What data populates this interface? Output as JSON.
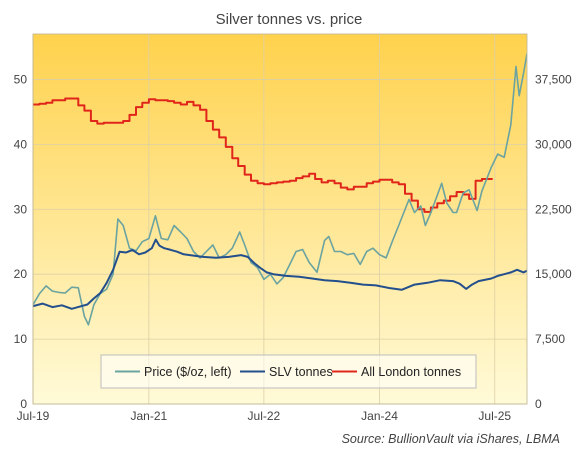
{
  "chart_data": {
    "type": "line",
    "title": "Silver tonnes vs. price",
    "source": "Source: BullionVault via iShares, LBMA",
    "x_ticks": [
      "Jul-19",
      "Jan-21",
      "Jul-22",
      "Jan-24",
      "Jul-25"
    ],
    "x_range": [
      "2019-07",
      "2025-12"
    ],
    "y_left": {
      "ticks": [
        "0",
        "10",
        "20",
        "30",
        "40",
        "50"
      ],
      "range": [
        0,
        57
      ]
    },
    "y_right": {
      "ticks": [
        "0",
        "7,500",
        "15,000",
        "22,500",
        "30,000",
        "37,500"
      ],
      "range": [
        0,
        42750
      ]
    },
    "grid": true,
    "legend_position": "bottom-center",
    "colors": {
      "background_top": "#ffd24d",
      "background_bottom": "#fffad8",
      "grid": "#dccfa6",
      "price": "#6aa3a0",
      "slv": "#234f8c",
      "london": "#e0251b"
    },
    "series": [
      {
        "name": "Price ($/oz, left)",
        "axis": "left",
        "color": "#6aa3a0",
        "points": [
          [
            "2019-07-01",
            15.3
          ],
          [
            "2019-08-01",
            17.0
          ],
          [
            "2019-09-01",
            18.2
          ],
          [
            "2019-10-01",
            17.4
          ],
          [
            "2019-11-01",
            17.2
          ],
          [
            "2019-12-01",
            17.1
          ],
          [
            "2020-01-01",
            18.0
          ],
          [
            "2020-02-01",
            17.9
          ],
          [
            "2020-03-01",
            13.5
          ],
          [
            "2020-03-20",
            12.2
          ],
          [
            "2020-04-15",
            15.3
          ],
          [
            "2020-05-15",
            17.0
          ],
          [
            "2020-06-15",
            17.7
          ],
          [
            "2020-07-15",
            20.0
          ],
          [
            "2020-08-07",
            28.5
          ],
          [
            "2020-09-01",
            27.5
          ],
          [
            "2020-10-01",
            24.0
          ],
          [
            "2020-11-01",
            23.6
          ],
          [
            "2020-12-01",
            25.0
          ],
          [
            "2021-01-01",
            25.5
          ],
          [
            "2021-02-01",
            29.0
          ],
          [
            "2021-03-01",
            25.5
          ],
          [
            "2021-04-01",
            25.3
          ],
          [
            "2021-05-01",
            27.5
          ],
          [
            "2021-06-01",
            26.5
          ],
          [
            "2021-07-01",
            25.5
          ],
          [
            "2021-08-01",
            23.5
          ],
          [
            "2021-09-01",
            22.5
          ],
          [
            "2021-10-01",
            23.5
          ],
          [
            "2021-11-01",
            24.5
          ],
          [
            "2021-12-01",
            22.5
          ],
          [
            "2022-01-01",
            23.0
          ],
          [
            "2022-02-01",
            24.0
          ],
          [
            "2022-03-08",
            26.5
          ],
          [
            "2022-04-01",
            24.5
          ],
          [
            "2022-05-01",
            21.8
          ],
          [
            "2022-06-01",
            21.0
          ],
          [
            "2022-07-01",
            19.2
          ],
          [
            "2022-08-01",
            20.0
          ],
          [
            "2022-09-01",
            18.5
          ],
          [
            "2022-10-01",
            19.5
          ],
          [
            "2022-11-01",
            21.5
          ],
          [
            "2022-12-01",
            23.5
          ],
          [
            "2023-01-01",
            23.8
          ],
          [
            "2023-02-01",
            21.8
          ],
          [
            "2023-03-10",
            20.3
          ],
          [
            "2023-04-15",
            25.2
          ],
          [
            "2023-05-05",
            25.8
          ],
          [
            "2023-06-01",
            23.5
          ],
          [
            "2023-07-01",
            23.5
          ],
          [
            "2023-08-01",
            23.0
          ],
          [
            "2023-09-01",
            23.2
          ],
          [
            "2023-10-01",
            21.5
          ],
          [
            "2023-11-01",
            23.5
          ],
          [
            "2023-12-01",
            24.0
          ],
          [
            "2024-01-01",
            23.0
          ],
          [
            "2024-02-01",
            22.5
          ],
          [
            "2024-03-01",
            25.0
          ],
          [
            "2024-04-01",
            27.5
          ],
          [
            "2024-05-20",
            31.5
          ],
          [
            "2024-06-15",
            29.5
          ],
          [
            "2024-07-15",
            30.5
          ],
          [
            "2024-08-05",
            27.5
          ],
          [
            "2024-09-01",
            29.5
          ],
          [
            "2024-10-22",
            34.0
          ],
          [
            "2024-11-15",
            31.0
          ],
          [
            "2024-12-15",
            29.5
          ],
          [
            "2025-01-01",
            29.5
          ],
          [
            "2025-02-01",
            32.5
          ],
          [
            "2025-03-01",
            33.0
          ],
          [
            "2025-04-08",
            29.8
          ],
          [
            "2025-05-01",
            32.8
          ],
          [
            "2025-06-15",
            36.5
          ],
          [
            "2025-07-15",
            38.5
          ],
          [
            "2025-08-15",
            38.0
          ],
          [
            "2025-09-15",
            43.0
          ],
          [
            "2025-10-10",
            52.0
          ],
          [
            "2025-10-25",
            47.5
          ],
          [
            "2025-11-15",
            51.0
          ],
          [
            "2025-12-01",
            54.0
          ]
        ]
      },
      {
        "name": "SLV tonnes",
        "axis": "right",
        "color": "#234f8c",
        "points": [
          [
            "2019-07-01",
            11300
          ],
          [
            "2019-08-15",
            11600
          ],
          [
            "2019-10-01",
            11200
          ],
          [
            "2019-11-15",
            11400
          ],
          [
            "2020-01-01",
            11000
          ],
          [
            "2020-02-15",
            11300
          ],
          [
            "2020-03-15",
            11500
          ],
          [
            "2020-04-15",
            12200
          ],
          [
            "2020-05-15",
            12800
          ],
          [
            "2020-06-15",
            14000
          ],
          [
            "2020-07-15",
            15500
          ],
          [
            "2020-08-15",
            17600
          ],
          [
            "2020-09-15",
            17500
          ],
          [
            "2020-10-15",
            17800
          ],
          [
            "2020-11-15",
            17300
          ],
          [
            "2020-12-15",
            17500
          ],
          [
            "2021-01-15",
            18000
          ],
          [
            "2021-02-03",
            19000
          ],
          [
            "2021-02-20",
            18300
          ],
          [
            "2021-03-15",
            18000
          ],
          [
            "2021-04-15",
            17800
          ],
          [
            "2021-05-15",
            17600
          ],
          [
            "2021-06-15",
            17300
          ],
          [
            "2021-07-15",
            17200
          ],
          [
            "2021-09-15",
            17000
          ],
          [
            "2021-11-15",
            16900
          ],
          [
            "2022-01-15",
            17000
          ],
          [
            "2022-03-15",
            17200
          ],
          [
            "2022-04-15",
            17000
          ],
          [
            "2022-05-15",
            16300
          ],
          [
            "2022-06-15",
            15700
          ],
          [
            "2022-07-15",
            15200
          ],
          [
            "2022-08-15",
            15000
          ],
          [
            "2022-10-15",
            14800
          ],
          [
            "2022-12-15",
            14700
          ],
          [
            "2023-02-15",
            14500
          ],
          [
            "2023-04-15",
            14300
          ],
          [
            "2023-06-15",
            14200
          ],
          [
            "2023-08-15",
            14000
          ],
          [
            "2023-10-15",
            13800
          ],
          [
            "2023-12-15",
            13700
          ],
          [
            "2024-02-15",
            13400
          ],
          [
            "2024-04-15",
            13200
          ],
          [
            "2024-06-15",
            13800
          ],
          [
            "2024-08-15",
            14000
          ],
          [
            "2024-10-15",
            14300
          ],
          [
            "2024-12-15",
            14200
          ],
          [
            "2025-01-15",
            13900
          ],
          [
            "2025-02-15",
            13300
          ],
          [
            "2025-03-15",
            13800
          ],
          [
            "2025-04-15",
            14200
          ],
          [
            "2025-06-15",
            14500
          ],
          [
            "2025-07-15",
            14800
          ],
          [
            "2025-08-15",
            15000
          ],
          [
            "2025-09-15",
            15200
          ],
          [
            "2025-10-15",
            15500
          ],
          [
            "2025-11-15",
            15200
          ],
          [
            "2025-12-01",
            15400
          ]
        ]
      },
      {
        "name": "All London tonnes",
        "axis": "right",
        "color": "#e0251b",
        "step": true,
        "points": [
          [
            "2019-07-01",
            34600
          ],
          [
            "2019-08-01",
            34700
          ],
          [
            "2019-09-01",
            34800
          ],
          [
            "2019-10-01",
            35100
          ],
          [
            "2019-12-01",
            35300
          ],
          [
            "2020-02-01",
            34500
          ],
          [
            "2020-03-01",
            33900
          ],
          [
            "2020-04-01",
            32700
          ],
          [
            "2020-05-01",
            32400
          ],
          [
            "2020-06-01",
            32500
          ],
          [
            "2020-09-01",
            32700
          ],
          [
            "2020-10-01",
            33400
          ],
          [
            "2020-11-01",
            34300
          ],
          [
            "2020-12-01",
            34800
          ],
          [
            "2021-01-01",
            35200
          ],
          [
            "2021-02-01",
            35100
          ],
          [
            "2021-04-01",
            35000
          ],
          [
            "2021-05-01",
            34800
          ],
          [
            "2021-06-01",
            34600
          ],
          [
            "2021-07-01",
            34900
          ],
          [
            "2021-08-01",
            34500
          ],
          [
            "2021-09-01",
            34000
          ],
          [
            "2021-10-01",
            32700
          ],
          [
            "2021-11-01",
            31700
          ],
          [
            "2021-12-01",
            30800
          ],
          [
            "2022-01-01",
            29700
          ],
          [
            "2022-02-01",
            28400
          ],
          [
            "2022-03-01",
            27500
          ],
          [
            "2022-04-01",
            26500
          ],
          [
            "2022-05-01",
            25800
          ],
          [
            "2022-06-01",
            25500
          ],
          [
            "2022-07-01",
            25400
          ],
          [
            "2022-08-01",
            25500
          ],
          [
            "2022-09-01",
            25600
          ],
          [
            "2022-10-01",
            25700
          ],
          [
            "2022-11-01",
            25800
          ],
          [
            "2022-12-01",
            26100
          ],
          [
            "2023-01-01",
            26300
          ],
          [
            "2023-02-01",
            26600
          ],
          [
            "2023-03-01",
            26000
          ],
          [
            "2023-04-01",
            25600
          ],
          [
            "2023-05-01",
            25800
          ],
          [
            "2023-06-01",
            25500
          ],
          [
            "2023-07-01",
            25000
          ],
          [
            "2023-08-01",
            24800
          ],
          [
            "2023-09-01",
            25100
          ],
          [
            "2023-11-01",
            25500
          ],
          [
            "2023-12-01",
            25700
          ],
          [
            "2024-01-01",
            25900
          ],
          [
            "2024-03-01",
            25600
          ],
          [
            "2024-04-01",
            25400
          ],
          [
            "2024-05-01",
            24300
          ],
          [
            "2024-06-01",
            23500
          ],
          [
            "2024-07-01",
            22500
          ],
          [
            "2024-08-01",
            22200
          ],
          [
            "2024-09-01",
            22700
          ],
          [
            "2024-10-01",
            23200
          ],
          [
            "2024-11-01",
            23500
          ],
          [
            "2024-12-01",
            24000
          ],
          [
            "2025-01-01",
            24500
          ],
          [
            "2025-02-01",
            24200
          ],
          [
            "2025-03-01",
            23700
          ],
          [
            "2025-04-01",
            25800
          ],
          [
            "2025-05-01",
            26000
          ],
          [
            "2025-06-01",
            26000
          ]
        ]
      }
    ]
  }
}
